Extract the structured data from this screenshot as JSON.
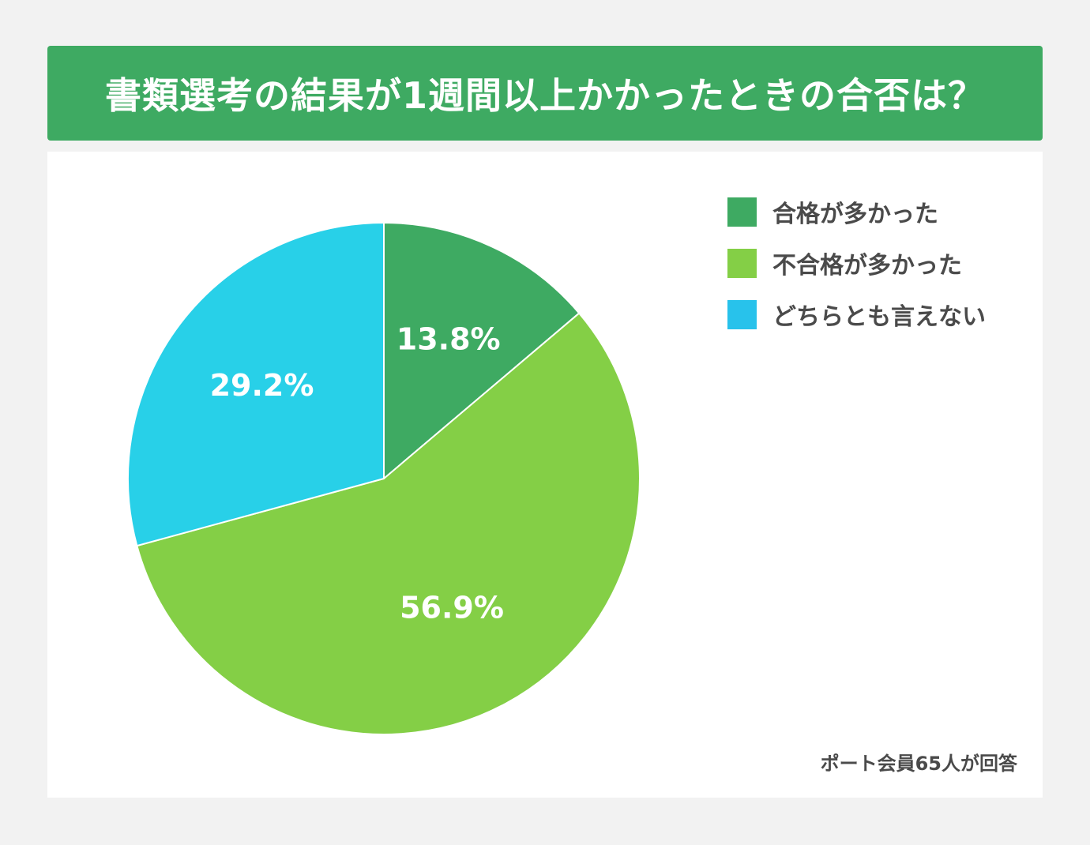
{
  "title": "書類選考の結果が1週間以上かかったときの合否は？",
  "source_note": "ポート会員65人が回答",
  "colors": {
    "background": "#f2f2f2",
    "title_bar": "#3eaa62",
    "panel": "#ffffff"
  },
  "chart_data": {
    "type": "pie",
    "title": "書類選考の結果が1週間以上かかったときの合否は？",
    "unit": "%",
    "start": "12 o'clock",
    "direction": "clockwise",
    "legend_position": "top-right",
    "slices": [
      {
        "name": "合格が多かった",
        "value": 13.8,
        "label": "13.8%",
        "color": "#3eaa62"
      },
      {
        "name": "不合格が多かった",
        "value": 56.9,
        "label": "56.9%",
        "color": "#84cf46"
      },
      {
        "name": "どちらとも言えない",
        "value": 29.2,
        "label": "29.2%",
        "color": "#28d0e8"
      }
    ]
  },
  "legend": [
    {
      "label": "合格が多かった",
      "color": "#3eaa62"
    },
    {
      "label": "不合格が多かった",
      "color": "#84cf46"
    },
    {
      "label": "どちらとも言えない",
      "color": "#28c2eb"
    }
  ]
}
